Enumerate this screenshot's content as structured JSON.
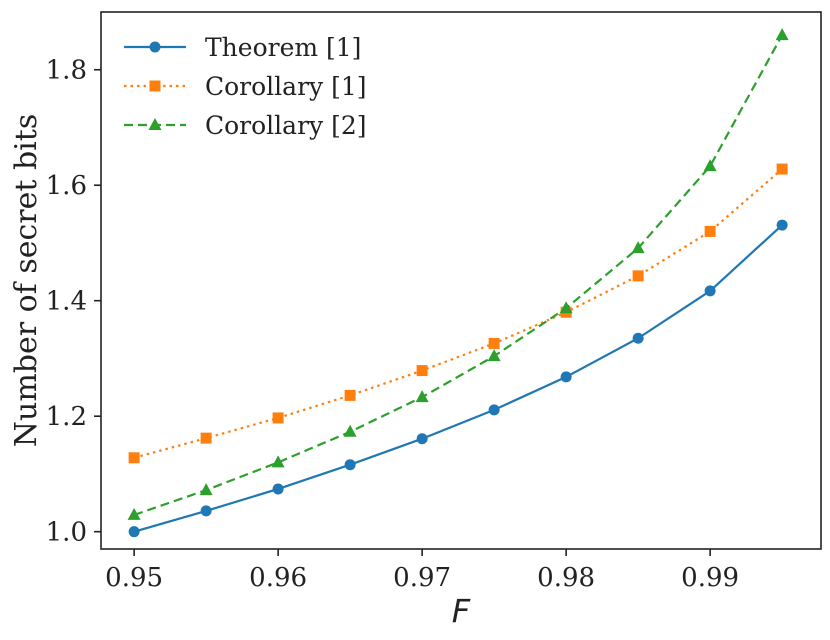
{
  "chart_data": {
    "type": "line",
    "title": "",
    "xlabel": "F",
    "ylabel": "Number of secret bits",
    "xlim": [
      0.9477,
      0.9977
    ],
    "ylim": [
      0.97,
      1.9
    ],
    "x": [
      0.95,
      0.955,
      0.96,
      0.965,
      0.97,
      0.975,
      0.98,
      0.985,
      0.99,
      0.995
    ],
    "xticks": [
      0.95,
      0.96,
      0.97,
      0.98,
      0.99
    ],
    "xtick_labels": [
      "0.95",
      "0.96",
      "0.97",
      "0.98",
      "0.99"
    ],
    "yticks": [
      1.0,
      1.2,
      1.4,
      1.6,
      1.8
    ],
    "ytick_labels": [
      "1.0",
      "1.2",
      "1.4",
      "1.6",
      "1.8"
    ],
    "grid": false,
    "legend_position": "top-left",
    "series": [
      {
        "name": "Theorem [1]",
        "color": "#1f77b4",
        "line_style": "solid",
        "marker": "circle",
        "values": [
          1.0,
          1.036,
          1.074,
          1.116,
          1.161,
          1.211,
          1.268,
          1.335,
          1.417,
          1.531
        ]
      },
      {
        "name": "Corollary [1]",
        "color": "#ff7f0e",
        "line_style": "dotted",
        "marker": "square",
        "values": [
          1.128,
          1.162,
          1.197,
          1.236,
          1.279,
          1.326,
          1.38,
          1.443,
          1.52,
          1.628
        ]
      },
      {
        "name": "Corollary [2]",
        "color": "#2ca02c",
        "line_style": "dashed",
        "marker": "triangle",
        "values": [
          1.029,
          1.072,
          1.12,
          1.173,
          1.233,
          1.304,
          1.387,
          1.491,
          1.633,
          1.86
        ]
      }
    ]
  }
}
